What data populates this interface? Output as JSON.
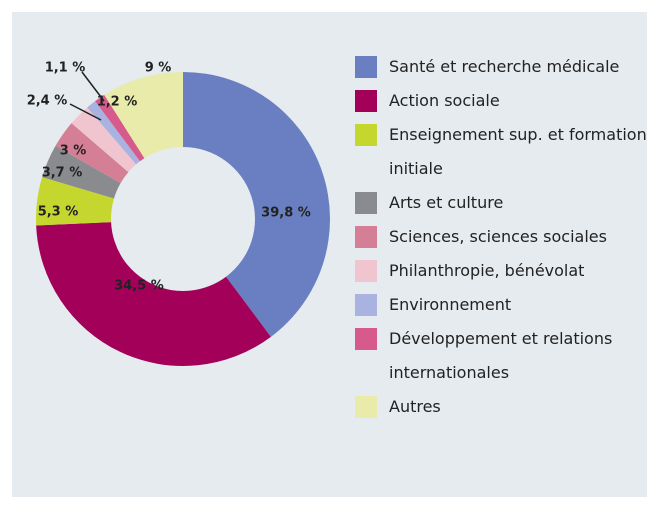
{
  "chart_data": {
    "type": "pie",
    "categories": [
      "Santé et recherche médicale",
      "Action sociale",
      "Enseignement sup. et formation initiale",
      "Arts et culture",
      "Sciences, sciences sociales",
      "Philanthropie, bénévolat",
      "Environnement",
      "Développement et relations internationales",
      "Autres"
    ],
    "values": [
      39.8,
      34.5,
      5.3,
      3.7,
      3,
      2.4,
      1.1,
      1.2,
      9
    ],
    "value_labels": [
      "39,8 %",
      "34,5 %",
      "5,3 %",
      "3,7 %",
      "3 %",
      "2,4 %",
      "1,1 %",
      "1,2 %",
      "9 %"
    ],
    "colors": [
      "#6a7fc1",
      "#a3005a",
      "#c5d72f",
      "#8a8b8f",
      "#d47f96",
      "#f1c5d0",
      "#aab3df",
      "#d65a8b",
      "#e9ebaa"
    ],
    "legend": "right"
  }
}
